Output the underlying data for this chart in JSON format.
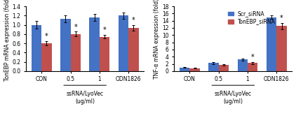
{
  "left_chart": {
    "title": "TonEBP mRNA expression (fold)",
    "categories": [
      "CON",
      "0.5",
      "1",
      "ODN1826"
    ],
    "scr_values": [
      1.0,
      1.13,
      1.16,
      1.2
    ],
    "ton_values": [
      0.6,
      0.8,
      0.74,
      0.94
    ],
    "scr_errors": [
      0.08,
      0.07,
      0.07,
      0.07
    ],
    "ton_errors": [
      0.05,
      0.05,
      0.04,
      0.06
    ],
    "ylim": [
      0.0,
      1.4
    ],
    "yticks": [
      0.0,
      0.2,
      0.4,
      0.6,
      0.8,
      1.0,
      1.2,
      1.4
    ],
    "xlabel_main": "ssRNA/LyoVec",
    "xlabel_sub": "(ug/ml)"
  },
  "right_chart": {
    "title": "TNF-α mRNA expression (fold)",
    "categories": [
      "CON",
      "0.5",
      "1",
      "ODN1826"
    ],
    "scr_values": [
      1.0,
      2.2,
      3.2,
      15.0
    ],
    "ton_values": [
      0.8,
      1.7,
      2.2,
      12.5
    ],
    "scr_errors": [
      0.15,
      0.25,
      0.35,
      0.5
    ],
    "ton_errors": [
      0.1,
      0.18,
      0.25,
      0.9
    ],
    "ylim": [
      0.0,
      18.0
    ],
    "yticks": [
      0,
      2,
      4,
      6,
      8,
      10,
      12,
      14,
      16,
      18
    ],
    "xlabel_main": "ssRNA/LyoVec",
    "xlabel_sub": "(ug/ml)"
  },
  "scr_color": "#4472C4",
  "ton_color": "#C0504D",
  "bar_width": 0.35,
  "legend_labels": [
    "Scr_siRNA",
    "TonEBP_siRNA"
  ],
  "asterisk_fontsize": 7,
  "tick_fontsize": 5.5,
  "label_fontsize": 5.5,
  "legend_fontsize": 5.5
}
